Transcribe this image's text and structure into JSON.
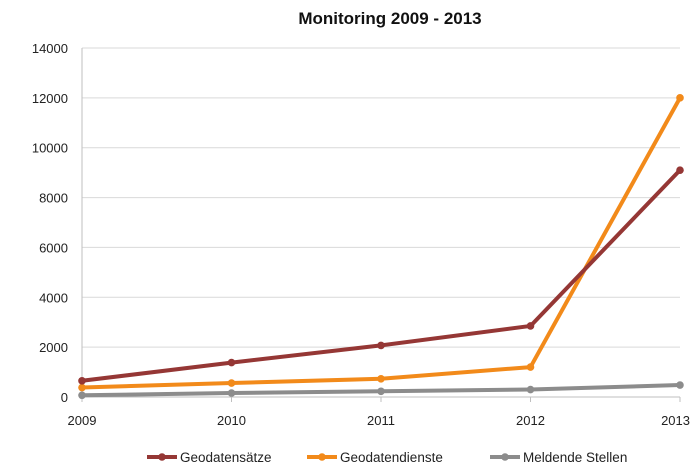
{
  "chart_data": {
    "type": "line",
    "title": "Monitoring 2009 - 2013",
    "xlabel": "",
    "ylabel": "",
    "categories": [
      "2009",
      "2010",
      "2011",
      "2012",
      "2013"
    ],
    "ylim": [
      0,
      14000
    ],
    "yticks": [
      "0",
      "2000",
      "4000",
      "6000",
      "8000",
      "10000",
      "12000",
      "14000"
    ],
    "grid": true,
    "legend_position": "bottom",
    "series": [
      {
        "name": "Geodatensätze",
        "color": "#953735",
        "values": [
          650,
          1380,
          2070,
          2850,
          9100
        ]
      },
      {
        "name": "Geodatendienste",
        "color": "#f28a1a",
        "values": [
          380,
          560,
          730,
          1200,
          12000
        ]
      },
      {
        "name": "Meldende Stellen",
        "color": "#8c8c8c",
        "values": [
          70,
          160,
          230,
          300,
          480
        ]
      }
    ]
  }
}
